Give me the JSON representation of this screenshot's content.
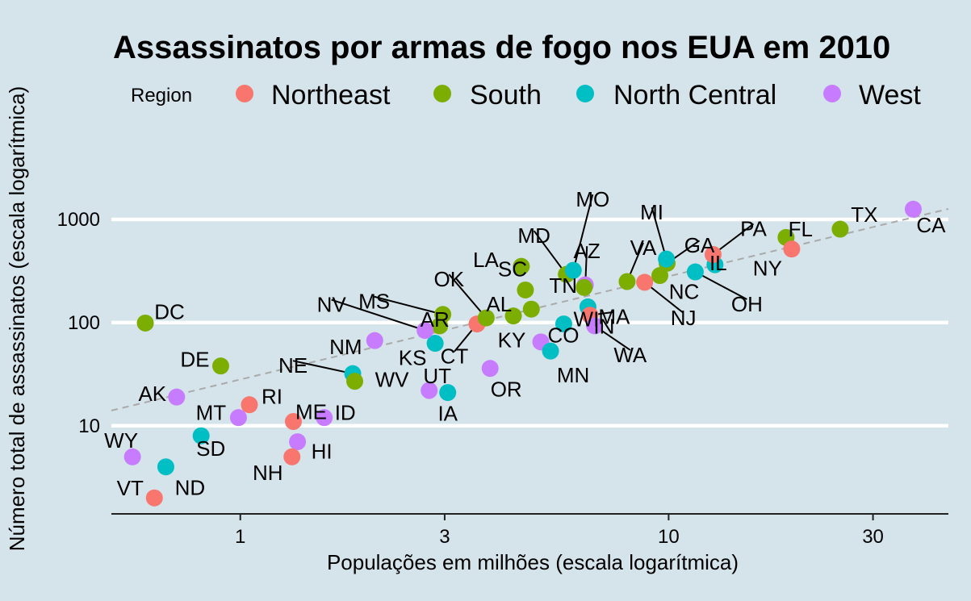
{
  "chart_data": {
    "type": "scatter",
    "title": "Assassinatos por armas de fogo nos EUA em 2010",
    "xlabel": "Populações em milhões (escala logarítmica)",
    "ylabel": "Número total de assassinatos (escala logarítmica)",
    "x_scale": "log10",
    "y_scale": "log10",
    "xlim": [
      0.5,
      45
    ],
    "ylim": [
      1.4,
      4000
    ],
    "x_ticks": [
      {
        "value": 1,
        "label": "1"
      },
      {
        "value": 3,
        "label": "3"
      },
      {
        "value": 10,
        "label": "10"
      },
      {
        "value": 30,
        "label": "30"
      }
    ],
    "y_ticks": [
      {
        "value": 10,
        "label": "10"
      },
      {
        "value": 100,
        "label": "100"
      },
      {
        "value": 1000,
        "label": "1000"
      }
    ],
    "grid": "horizontal major lines only",
    "legend": {
      "title": "Region",
      "position": "top",
      "entries": [
        {
          "name": "Northeast",
          "color": "#f8766d"
        },
        {
          "name": "South",
          "color": "#7cae00"
        },
        {
          "name": "North Central",
          "color": "#00bfc4"
        },
        {
          "name": "West",
          "color": "#c77cff"
        }
      ]
    },
    "reference_line": {
      "style": "dashed",
      "color": "#aaaaaa",
      "murders_per_million": 28.1
    },
    "points": [
      {
        "abb": "AL",
        "region": "South",
        "pop": 4.78,
        "murders": 135
      },
      {
        "abb": "AK",
        "region": "West",
        "pop": 0.71,
        "murders": 19
      },
      {
        "abb": "AZ",
        "region": "West",
        "pop": 6.39,
        "murders": 232
      },
      {
        "abb": "AR",
        "region": "South",
        "pop": 2.92,
        "murders": 93
      },
      {
        "abb": "CA",
        "region": "West",
        "pop": 37.25,
        "murders": 1257
      },
      {
        "abb": "CO",
        "region": "West",
        "pop": 5.03,
        "murders": 65
      },
      {
        "abb": "CT",
        "region": "Northeast",
        "pop": 3.57,
        "murders": 97
      },
      {
        "abb": "DE",
        "region": "South",
        "pop": 0.9,
        "murders": 38
      },
      {
        "abb": "DC",
        "region": "South",
        "pop": 0.6,
        "murders": 99
      },
      {
        "abb": "FL",
        "region": "South",
        "pop": 18.8,
        "murders": 669
      },
      {
        "abb": "GA",
        "region": "South",
        "pop": 9.92,
        "murders": 376
      },
      {
        "abb": "HI",
        "region": "West",
        "pop": 1.36,
        "murders": 7
      },
      {
        "abb": "ID",
        "region": "West",
        "pop": 1.57,
        "murders": 12
      },
      {
        "abb": "IL",
        "region": "North Central",
        "pop": 12.83,
        "murders": 364
      },
      {
        "abb": "IN",
        "region": "North Central",
        "pop": 6.48,
        "murders": 142
      },
      {
        "abb": "IA",
        "region": "North Central",
        "pop": 3.05,
        "murders": 21
      },
      {
        "abb": "KS",
        "region": "North Central",
        "pop": 2.85,
        "murders": 63
      },
      {
        "abb": "KY",
        "region": "South",
        "pop": 4.34,
        "murders": 116
      },
      {
        "abb": "LA",
        "region": "South",
        "pop": 4.53,
        "murders": 351
      },
      {
        "abb": "ME",
        "region": "Northeast",
        "pop": 1.33,
        "murders": 11
      },
      {
        "abb": "MD",
        "region": "South",
        "pop": 5.77,
        "murders": 293
      },
      {
        "abb": "MA",
        "region": "Northeast",
        "pop": 6.55,
        "murders": 118
      },
      {
        "abb": "MI",
        "region": "North Central",
        "pop": 9.88,
        "murders": 413
      },
      {
        "abb": "MN",
        "region": "North Central",
        "pop": 5.3,
        "murders": 53
      },
      {
        "abb": "MS",
        "region": "South",
        "pop": 2.97,
        "murders": 120
      },
      {
        "abb": "MO",
        "region": "North Central",
        "pop": 5.99,
        "murders": 321
      },
      {
        "abb": "MT",
        "region": "West",
        "pop": 0.99,
        "murders": 12
      },
      {
        "abb": "NE",
        "region": "North Central",
        "pop": 1.83,
        "murders": 32
      },
      {
        "abb": "NV",
        "region": "West",
        "pop": 2.7,
        "murders": 84
      },
      {
        "abb": "NH",
        "region": "Northeast",
        "pop": 1.32,
        "murders": 5
      },
      {
        "abb": "NJ",
        "region": "Northeast",
        "pop": 8.79,
        "murders": 246
      },
      {
        "abb": "NM",
        "region": "West",
        "pop": 2.06,
        "murders": 67
      },
      {
        "abb": "NY",
        "region": "Northeast",
        "pop": 19.38,
        "murders": 517
      },
      {
        "abb": "NC",
        "region": "South",
        "pop": 9.54,
        "murders": 286
      },
      {
        "abb": "ND",
        "region": "North Central",
        "pop": 0.67,
        "murders": 4
      },
      {
        "abb": "OH",
        "region": "North Central",
        "pop": 11.54,
        "murders": 310
      },
      {
        "abb": "OK",
        "region": "South",
        "pop": 3.75,
        "murders": 111
      },
      {
        "abb": "OR",
        "region": "West",
        "pop": 3.83,
        "murders": 36
      },
      {
        "abb": "PA",
        "region": "Northeast",
        "pop": 12.7,
        "murders": 457
      },
      {
        "abb": "RI",
        "region": "Northeast",
        "pop": 1.05,
        "murders": 16
      },
      {
        "abb": "SC",
        "region": "South",
        "pop": 4.63,
        "murders": 207
      },
      {
        "abb": "SD",
        "region": "North Central",
        "pop": 0.81,
        "murders": 8
      },
      {
        "abb": "TN",
        "region": "South",
        "pop": 6.35,
        "murders": 219
      },
      {
        "abb": "TX",
        "region": "South",
        "pop": 25.15,
        "murders": 805
      },
      {
        "abb": "UT",
        "region": "West",
        "pop": 2.76,
        "murders": 22
      },
      {
        "abb": "VT",
        "region": "Northeast",
        "pop": 0.63,
        "murders": 2
      },
      {
        "abb": "VA",
        "region": "South",
        "pop": 8.0,
        "murders": 250
      },
      {
        "abb": "WA",
        "region": "West",
        "pop": 6.72,
        "murders": 93
      },
      {
        "abb": "WV",
        "region": "South",
        "pop": 1.85,
        "murders": 27
      },
      {
        "abb": "WI",
        "region": "North Central",
        "pop": 5.69,
        "murders": 97
      },
      {
        "abb": "WY",
        "region": "West",
        "pop": 0.56,
        "murders": 5
      }
    ]
  }
}
